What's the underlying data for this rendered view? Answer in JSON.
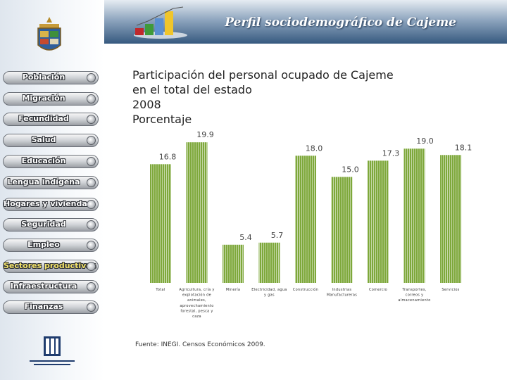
{
  "header": {
    "title": "Perfil sociodemográfico de Cajeme"
  },
  "sidebar": {
    "items": [
      {
        "label": "Población",
        "active": false
      },
      {
        "label": "Migración",
        "active": false
      },
      {
        "label": "Fecundidad",
        "active": false
      },
      {
        "label": "Salud",
        "active": false
      },
      {
        "label": "Educación",
        "active": false
      },
      {
        "label": "Lengua indígena",
        "active": false
      },
      {
        "label": "Hogares y vivienda",
        "active": false
      },
      {
        "label": "Seguridad",
        "active": false
      },
      {
        "label": "Empleo",
        "active": false
      },
      {
        "label": "Sectores productivos",
        "active": true
      },
      {
        "label": "Infraestructura",
        "active": false
      },
      {
        "label": "Finanzas",
        "active": false
      }
    ],
    "logo_icon": "municipal-seal-icon",
    "inegi_icon": "inegi-logo-icon"
  },
  "main": {
    "title_lines": [
      "Participación del personal ocupado de Cajeme",
      "en el total del estado",
      "2008",
      "Porcentaje"
    ],
    "source": "Fuente: INEGI. Censos Económicos 2009."
  },
  "chart_data": {
    "type": "bar",
    "title": "Participación del personal ocupado de Cajeme en el total del estado 2008 Porcentaje",
    "categories": [
      [
        "Total"
      ],
      [
        "Agricultura, cría y",
        "explotación de",
        "animales,",
        "aprovechamiento",
        "forestal, pesca y",
        "caza"
      ],
      [
        "Minería"
      ],
      [
        "Electricidad, agua",
        "y gas"
      ],
      [
        "Construcción"
      ],
      [
        "Industrias",
        "Manufactureras"
      ],
      [
        "Comercio"
      ],
      [
        "Transportes,",
        "correos y",
        "almacenamiento"
      ],
      [
        "Servicios"
      ]
    ],
    "values": [
      16.8,
      19.9,
      5.4,
      5.7,
      18.0,
      15.0,
      17.3,
      19.0,
      18.1
    ],
    "value_labels": [
      "16.8",
      "19.9",
      "5.4",
      "5.7",
      "18.0",
      "15.0",
      "17.3",
      "19.0",
      "18.1"
    ],
    "ylim": [
      0,
      25
    ],
    "grid": false,
    "bar_color": "#7ea83b"
  },
  "colors": {
    "header_dark": "#36597f",
    "active_nav_text": "#f3e36a",
    "bar": "#7ea83b"
  }
}
